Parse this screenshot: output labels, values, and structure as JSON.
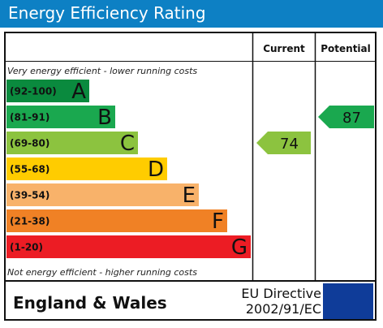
{
  "title": "Energy Efficiency Rating",
  "headers": {
    "current": "Current",
    "potential": "Potential"
  },
  "notes": {
    "top": "Very energy efficient - lower running costs",
    "bottom": "Not energy efficient - higher running costs"
  },
  "footer": {
    "region": "England & Wales",
    "directive_line1": "EU Directive",
    "directive_line2": "2002/91/EC"
  },
  "chart_data": {
    "type": "bar",
    "categories": [
      "A",
      "B",
      "C",
      "D",
      "E",
      "F",
      "G"
    ],
    "ranges": [
      "(92-100)",
      "(81-91)",
      "(69-80)",
      "(55-68)",
      "(39-54)",
      "(21-38)",
      "(1-20)"
    ],
    "colors": [
      "#0a8a3e",
      "#1aa84f",
      "#8cc33f",
      "#ffcc00",
      "#f8b26a",
      "#f08125",
      "#ec1c24"
    ],
    "current": {
      "value": 74,
      "band": "C",
      "color": "#8cc33f"
    },
    "potential": {
      "value": 87,
      "band": "B",
      "color": "#1aa84f"
    }
  }
}
